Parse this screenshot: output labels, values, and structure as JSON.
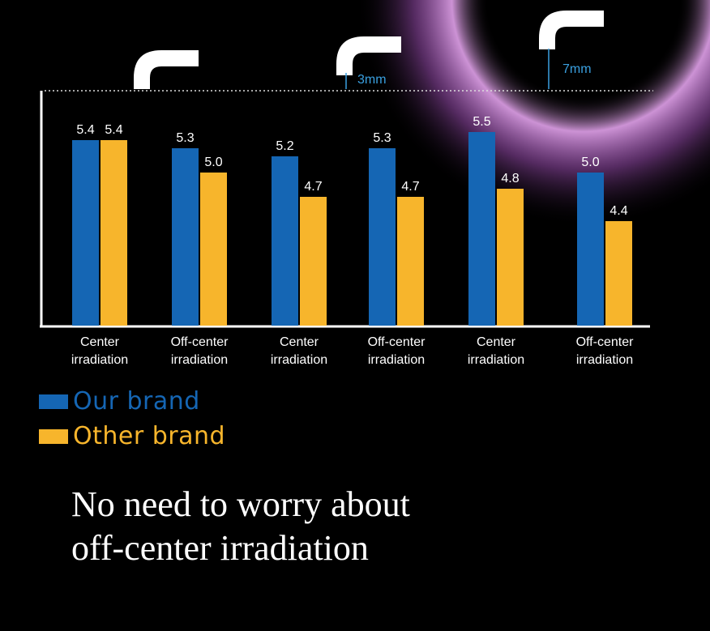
{
  "chart_data": {
    "type": "bar",
    "categories": [
      "Center irradiation",
      "Off-center irradiation",
      "Center irradiation",
      "Off-center irradiation",
      "Center irradiation",
      "Off-center irradiation"
    ],
    "series": [
      {
        "name": "Our brand",
        "color": "#1566b4",
        "values": [
          5.4,
          5.3,
          5.2,
          5.3,
          5.5,
          5.0
        ]
      },
      {
        "name": "Other brand",
        "color": "#f7b52c",
        "values": [
          5.4,
          5.0,
          4.7,
          4.7,
          4.8,
          4.4
        ]
      }
    ],
    "legend": "bottom-left",
    "annotations": [
      "3mm",
      "7mm"
    ],
    "grid": false
  },
  "caption": {
    "line1": "No need to worry about",
    "line2": "off-center irradiation"
  },
  "colors": {
    "background": "#000000",
    "annotation": "#3aa0e0",
    "axis": "#ffffff",
    "glow": "#c77dd6"
  }
}
